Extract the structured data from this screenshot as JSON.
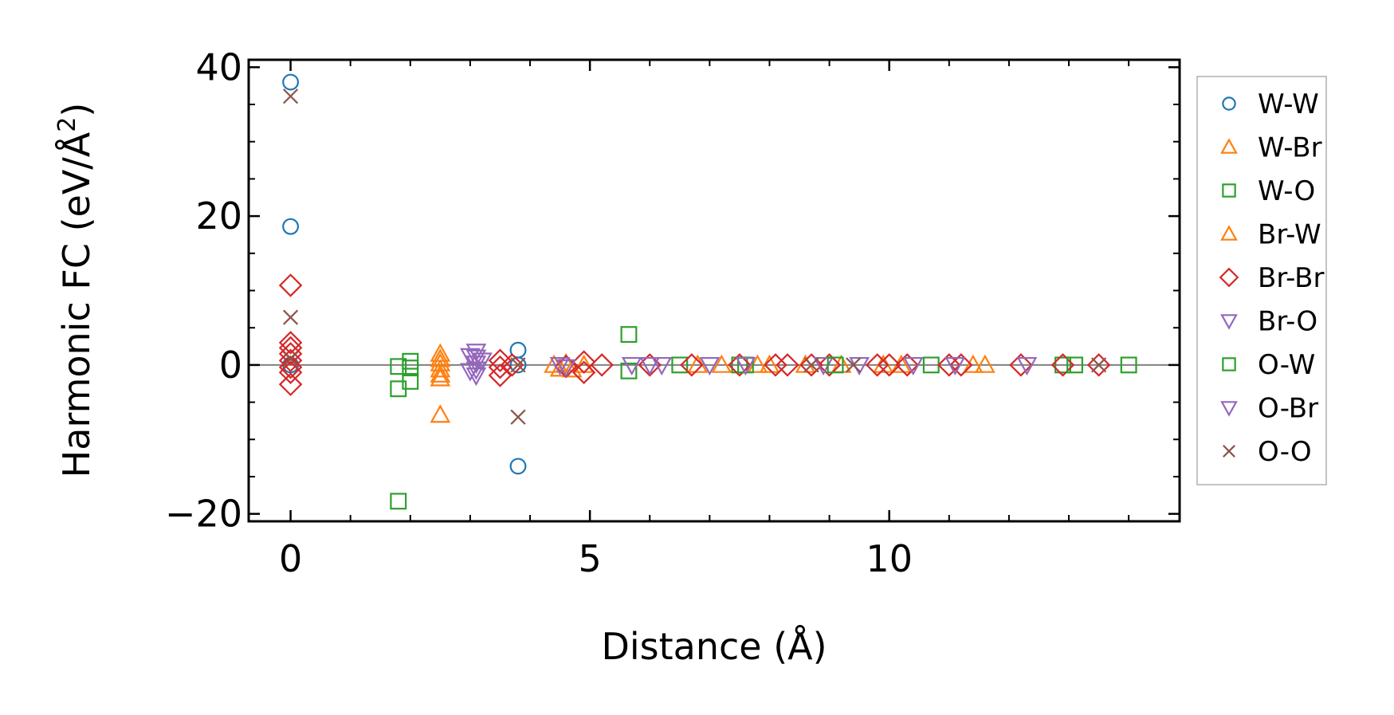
{
  "chart_data": {
    "type": "scatter",
    "xlabel": "Distance (Å)",
    "ylabel_main": "Harmonic FC (eV/Å",
    "ylabel_sup": "2",
    "ylabel_end": ")",
    "xlim": [
      -0.7,
      14.85
    ],
    "ylim": [
      -21,
      41
    ],
    "xticks": [
      0,
      5,
      10
    ],
    "xtick_labels": [
      "0",
      "5",
      "10"
    ],
    "yticks": [
      -20,
      0,
      20,
      40
    ],
    "ytick_labels": [
      "−20",
      "0",
      "20",
      "40"
    ],
    "zero_line": true,
    "legend_position": "outside-right",
    "series": [
      {
        "name": "W-W",
        "marker": "circle",
        "color": "#1f77b4",
        "points": [
          [
            0,
            38
          ],
          [
            0,
            18.6
          ],
          [
            0,
            0
          ],
          [
            3.8,
            2.0
          ],
          [
            3.8,
            0
          ],
          [
            3.8,
            -13.6
          ]
        ]
      },
      {
        "name": "W-Br",
        "marker": "triangle-up",
        "color": "#ff7f0e",
        "points": [
          [
            2.5,
            1.5
          ],
          [
            2.5,
            0.8
          ],
          [
            2.5,
            0.2
          ],
          [
            2.5,
            -0.6
          ],
          [
            2.5,
            -1.3
          ],
          [
            2.5,
            -6.7
          ],
          [
            4.4,
            0
          ],
          [
            4.6,
            0.2
          ],
          [
            7.2,
            0
          ],
          [
            8.0,
            0
          ],
          [
            9.2,
            0
          ],
          [
            10.2,
            0
          ],
          [
            11.6,
            0
          ]
        ]
      },
      {
        "name": "W-O",
        "marker": "square",
        "color": "#2ca02c",
        "points": [
          [
            1.8,
            -18.3
          ],
          [
            1.8,
            -3.2
          ],
          [
            1.8,
            -0.2
          ],
          [
            2.0,
            -2.2
          ],
          [
            2.0,
            -0.4
          ],
          [
            2.0,
            0.5
          ],
          [
            5.65,
            4.1
          ],
          [
            5.65,
            -0.8
          ],
          [
            6.5,
            0
          ],
          [
            7.5,
            0
          ],
          [
            10.7,
            0
          ],
          [
            12.9,
            0
          ],
          [
            14.0,
            0
          ]
        ]
      },
      {
        "name": "Br-W",
        "marker": "triangle-up",
        "color": "#ff7f0e",
        "points": [
          [
            2.5,
            -1.8
          ],
          [
            4.5,
            -0.5
          ],
          [
            4.7,
            -0.6
          ],
          [
            4.9,
            0
          ],
          [
            6.8,
            0
          ],
          [
            7.8,
            0
          ],
          [
            8.6,
            0
          ],
          [
            9.9,
            0
          ],
          [
            11.4,
            0
          ]
        ]
      },
      {
        "name": "Br-Br",
        "marker": "diamond",
        "color": "#d62728",
        "points": [
          [
            0,
            10.7
          ],
          [
            0,
            3.0
          ],
          [
            0,
            2.3
          ],
          [
            0,
            1.5
          ],
          [
            0,
            0.6
          ],
          [
            0,
            -0.3
          ],
          [
            0,
            -1.0
          ],
          [
            0,
            -2.6
          ],
          [
            3.5,
            0.6
          ],
          [
            3.5,
            -0.3
          ],
          [
            3.5,
            -1.4
          ],
          [
            3.7,
            0
          ],
          [
            4.6,
            -0.2
          ],
          [
            4.9,
            0.4
          ],
          [
            4.9,
            -1.0
          ],
          [
            5.2,
            0
          ],
          [
            6.0,
            0
          ],
          [
            6.7,
            0
          ],
          [
            7.5,
            0
          ],
          [
            8.1,
            0
          ],
          [
            8.3,
            0
          ],
          [
            8.7,
            0
          ],
          [
            9.0,
            0
          ],
          [
            9.8,
            0
          ],
          [
            10.0,
            0
          ],
          [
            10.3,
            0
          ],
          [
            11.0,
            0
          ],
          [
            11.2,
            0
          ],
          [
            12.2,
            0
          ],
          [
            12.9,
            0
          ],
          [
            13.5,
            0
          ]
        ]
      },
      {
        "name": "Br-O",
        "marker": "triangle-down",
        "color": "#9467bd",
        "points": [
          [
            3.1,
            1.8
          ],
          [
            3.1,
            1.0
          ],
          [
            3.1,
            0.2
          ],
          [
            3.1,
            -0.6
          ],
          [
            3.1,
            -1.4
          ],
          [
            3.2,
            0.6
          ],
          [
            4.5,
            0
          ],
          [
            5.7,
            0
          ],
          [
            6.0,
            0
          ],
          [
            7.0,
            0
          ],
          [
            8.9,
            0
          ],
          [
            9.5,
            0
          ]
        ]
      },
      {
        "name": "O-W",
        "marker": "square",
        "color": "#2ca02c",
        "points": [
          [
            7.6,
            0
          ],
          [
            9.1,
            0
          ],
          [
            13.1,
            0
          ]
        ]
      },
      {
        "name": "O-Br",
        "marker": "triangle-down",
        "color": "#9467bd",
        "points": [
          [
            3.0,
            1.2
          ],
          [
            3.0,
            -0.8
          ],
          [
            4.6,
            -0.3
          ],
          [
            6.2,
            0
          ],
          [
            7.6,
            0
          ],
          [
            10.4,
            0
          ],
          [
            11.1,
            0
          ],
          [
            12.3,
            0
          ]
        ]
      },
      {
        "name": "O-O",
        "marker": "x",
        "color": "#8c564b",
        "points": [
          [
            0,
            36.1
          ],
          [
            0,
            6.4
          ],
          [
            0,
            0.8
          ],
          [
            3.8,
            0
          ],
          [
            3.8,
            -7.0
          ],
          [
            8.7,
            0
          ],
          [
            9.4,
            0
          ],
          [
            13.5,
            0
          ]
        ]
      }
    ]
  }
}
